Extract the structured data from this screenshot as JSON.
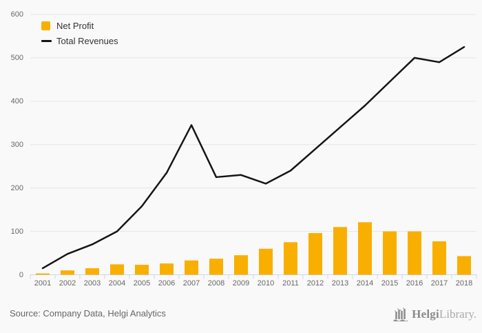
{
  "chart_data": {
    "type": "combo",
    "categories": [
      "2001",
      "2002",
      "2003",
      "2004",
      "2005",
      "2006",
      "2007",
      "2008",
      "2009",
      "2010",
      "2011",
      "2012",
      "2013",
      "2014",
      "2015",
      "2016",
      "2017",
      "2018"
    ],
    "series": [
      {
        "name": "Net Profit",
        "type": "bar",
        "color": "#F9AF00",
        "values": [
          3,
          10,
          15,
          24,
          23,
          26,
          33,
          37,
          45,
          60,
          75,
          96,
          110,
          121,
          100,
          100,
          77,
          43
        ]
      },
      {
        "name": "Total Revenues",
        "type": "line",
        "color": "#151515",
        "values": [
          15,
          48,
          70,
          100,
          158,
          235,
          345,
          225,
          230,
          210,
          240,
          290,
          340,
          390,
          445,
          500,
          490,
          525
        ]
      }
    ],
    "ylim": [
      0,
      600
    ],
    "yticks": [
      0,
      100,
      200,
      300,
      400,
      500,
      600
    ],
    "grid": true,
    "legend_position": "top-left"
  },
  "legend": {
    "items": [
      {
        "label": "Net Profit"
      },
      {
        "label": "Total Revenues"
      }
    ]
  },
  "footer": {
    "source": "Source: Company Data, Helgi Analytics",
    "logo": {
      "name": "Helgi",
      "suffix": "Library."
    }
  },
  "colors": {
    "background": "#f9f9f9",
    "grid": "#e6e6e6",
    "axis": "#ccd6eb",
    "bar": "#F9AF00",
    "line": "#151515",
    "axis_label": "#666666",
    "legend_text": "#333333",
    "source_text": "#666666",
    "logo_dark": "#8a8a8a",
    "logo_light": "#ababab"
  }
}
